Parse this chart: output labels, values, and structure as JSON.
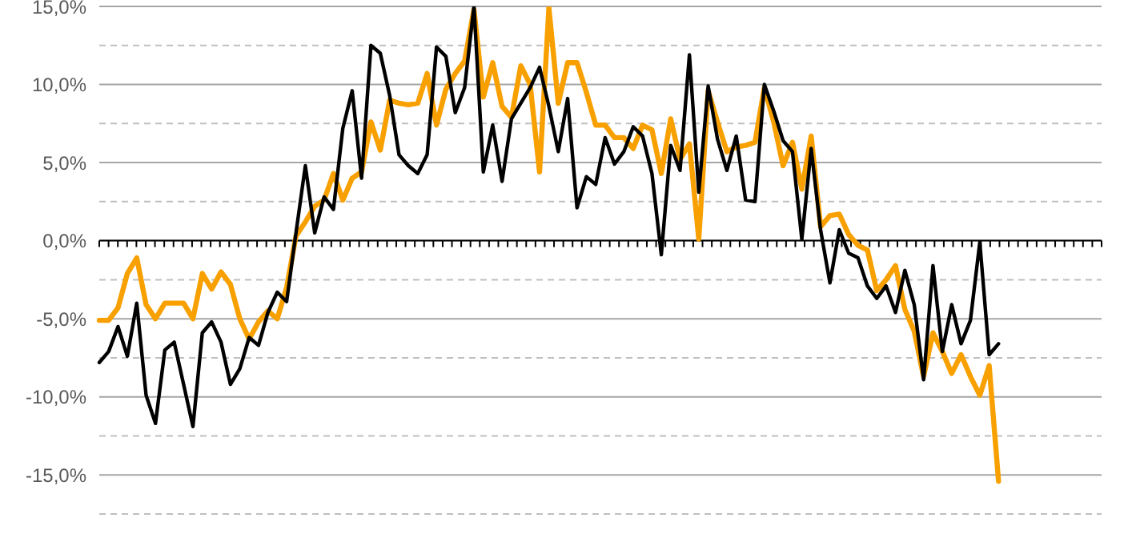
{
  "chart_data": {
    "type": "line",
    "categories": [
      null,
      null,
      null,
      null,
      null,
      null,
      null,
      null,
      null,
      null,
      null,
      null,
      null,
      null,
      null,
      null,
      null,
      null,
      null,
      null,
      null,
      null,
      null,
      null,
      null,
      null,
      null,
      null,
      null,
      null,
      null,
      null,
      null,
      null,
      null,
      null,
      null,
      null,
      null,
      null,
      null,
      null,
      null,
      null,
      null,
      null,
      null,
      null,
      null,
      null,
      null,
      null,
      null,
      null,
      null,
      null,
      null,
      null,
      null,
      null,
      null,
      null,
      null,
      null,
      null,
      null,
      null,
      null,
      null,
      null,
      null,
      null,
      null,
      null,
      null,
      null,
      null,
      null,
      null,
      null,
      null,
      null,
      null,
      null,
      null,
      null,
      null,
      null,
      null,
      null,
      null,
      null,
      null,
      null,
      null,
      null,
      null,
      null,
      null,
      null,
      null,
      null,
      null,
      null,
      null,
      null,
      null,
      null
    ],
    "series": [
      {
        "color": "#f7a000",
        "values": [
          -5.1,
          -5.1,
          -4.3,
          -2.1,
          -1.1,
          -4.1,
          -5.0,
          -4.0,
          -4.0,
          -4.0,
          -5.0,
          -2.1,
          -3.1,
          -2.0,
          -2.8,
          -5.0,
          -6.3,
          -5.2,
          -4.5,
          -5.0,
          -3.0,
          0.3,
          1.2,
          2.2,
          2.6,
          4.3,
          2.6,
          4.0,
          4.4,
          7.6,
          5.8,
          9.0,
          8.8,
          8.7,
          8.8,
          10.7,
          7.4,
          9.7,
          10.7,
          11.5,
          14.8,
          9.2,
          11.4,
          8.6,
          7.9,
          11.2,
          10.0,
          4.4,
          14.9,
          8.8,
          11.4,
          11.4,
          9.5,
          7.4,
          7.4,
          6.6,
          6.6,
          5.9,
          7.4,
          7.1,
          4.3,
          7.8,
          5.2,
          6.2,
          0.1,
          9.6,
          7.6,
          5.7,
          6.0,
          6.1,
          6.3,
          9.8,
          7.6,
          4.8,
          6.3,
          3.3,
          6.7,
          0.9,
          1.6,
          1.7,
          0.4,
          -0.3,
          -0.6,
          -3.2,
          -2.5,
          -1.6,
          -4.4,
          -5.8,
          -8.7,
          -5.9,
          -7.1,
          -8.5,
          -7.3,
          -8.7,
          -9.9,
          -8.0,
          -15.4,
          null,
          null,
          null,
          null,
          null,
          null,
          null,
          null,
          null,
          null,
          null
        ]
      },
      {
        "color": "#000000",
        "values": [
          -7.8,
          -7.1,
          -5.5,
          -7.4,
          -4.0,
          -9.9,
          -11.7,
          -7.0,
          -6.5,
          -9.2,
          -11.9,
          -5.9,
          -5.2,
          -6.5,
          -9.2,
          -8.2,
          -6.2,
          -6.7,
          -4.6,
          -3.3,
          -3.9,
          0.5,
          4.8,
          0.5,
          2.8,
          2.0,
          7.2,
          9.6,
          4.0,
          12.5,
          12.0,
          9.3,
          5.5,
          4.8,
          4.3,
          5.5,
          12.4,
          11.8,
          8.2,
          9.8,
          15.0,
          4.4,
          7.4,
          3.8,
          7.8,
          8.8,
          9.8,
          11.1,
          8.6,
          5.7,
          9.1,
          2.1,
          4.1,
          3.6,
          6.6,
          4.9,
          5.7,
          7.3,
          6.7,
          4.3,
          -0.9,
          6.1,
          4.5,
          11.9,
          3.1,
          9.9,
          6.5,
          4.5,
          6.7,
          2.6,
          2.5,
          10.0,
          8.3,
          6.4,
          5.7,
          0.1,
          5.9,
          0.7,
          -2.7,
          0.7,
          -0.8,
          -1.1,
          -2.9,
          -3.7,
          -2.9,
          -4.6,
          -1.9,
          -4.1,
          -8.9,
          -1.6,
          -7.1,
          -4.1,
          -6.6,
          -5.1,
          -0.1,
          -7.3,
          -6.6,
          null,
          null,
          null,
          null,
          null,
          null,
          null,
          null,
          null,
          null,
          null
        ]
      }
    ],
    "ylim": [
      -17.5,
      15
    ],
    "yticks": [
      {
        "value": 15,
        "label": "15,0%"
      },
      {
        "value": 12.5,
        "label": null
      },
      {
        "value": 10,
        "label": "10,0%"
      },
      {
        "value": 7.5,
        "label": null
      },
      {
        "value": 5,
        "label": "5,0%"
      },
      {
        "value": 2.5,
        "label": null
      },
      {
        "value": 0,
        "label": "0,0%"
      },
      {
        "value": -2.5,
        "label": null
      },
      {
        "value": -5,
        "label": "-5,0%"
      },
      {
        "value": -7.5,
        "label": null
      },
      {
        "value": -10,
        "label": "-10,0%"
      },
      {
        "value": -12.5,
        "label": null
      },
      {
        "value": -15,
        "label": "-15,0%"
      },
      {
        "value": -17.5,
        "label": null
      }
    ],
    "grid": "y",
    "marker": "none",
    "line_style": "solid",
    "legend": false,
    "tick_labels": "y"
  }
}
